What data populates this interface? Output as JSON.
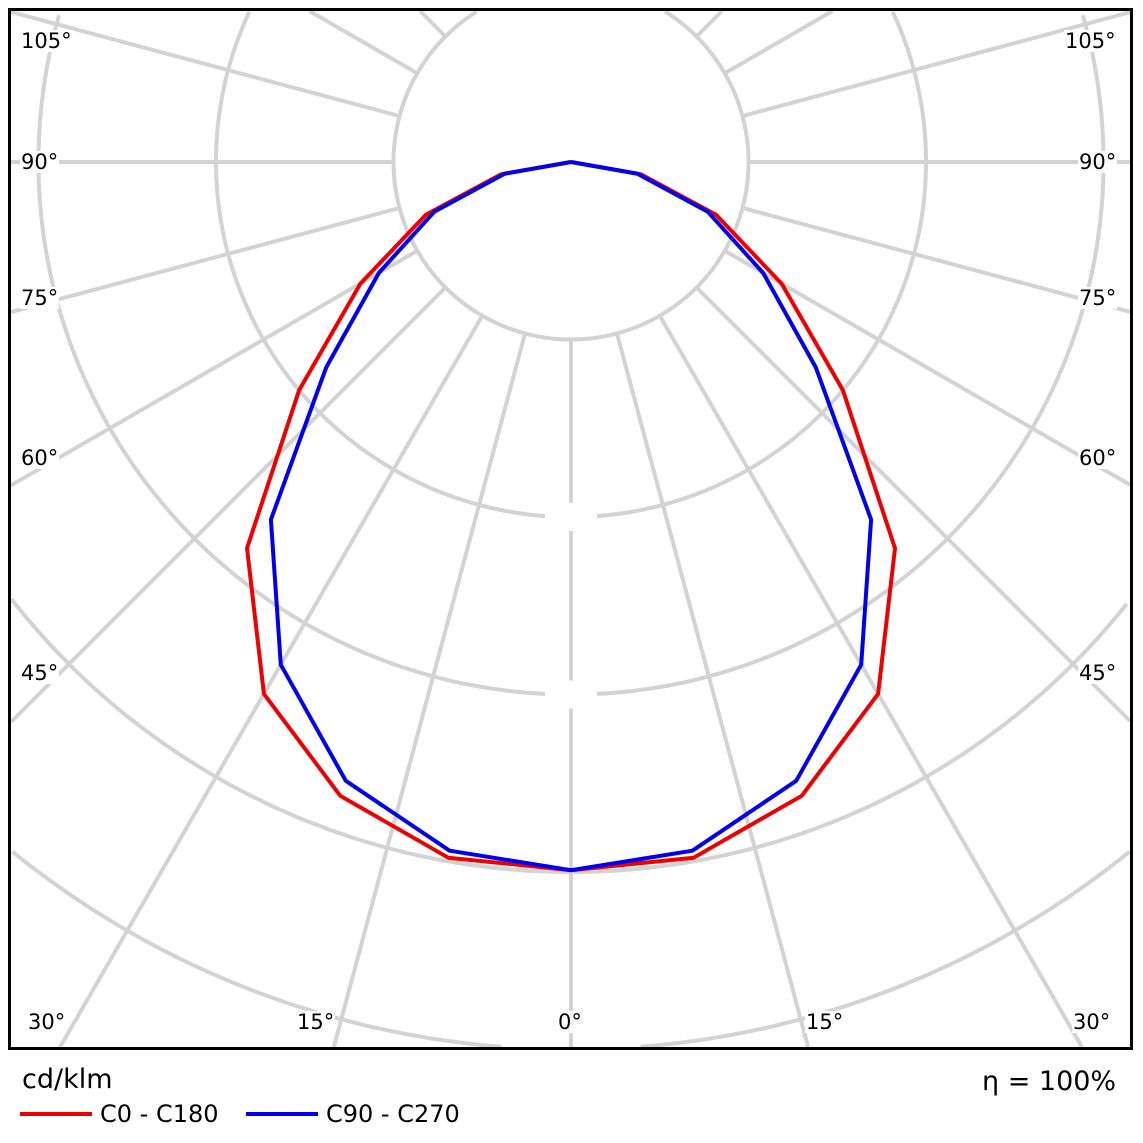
{
  "chart_data": {
    "type": "polar-line",
    "unit_label": "cd/klm",
    "efficiency_label": "η = 100%",
    "angle_labels": {
      "left": [
        "105°",
        "90°",
        "75°",
        "60°",
        "45°"
      ],
      "right": [
        "105°",
        "90°",
        "75°",
        "60°",
        "45°"
      ],
      "bottom": [
        "30°",
        "15°",
        "0°",
        "15°",
        "30°"
      ]
    },
    "grid": true,
    "angle_step_deg": 15,
    "radial_ticks_printed": false,
    "angles_deg": [
      0,
      10,
      20,
      30,
      40,
      50,
      60,
      70,
      80,
      90
    ],
    "series": [
      {
        "name": "C0 - C180",
        "color": "#ee0000",
        "values": [
          3.99,
          3.98,
          3.8,
          3.46,
          2.84,
          2.0,
          1.37,
          0.87,
          0.4,
          0.0
        ]
      },
      {
        "name": "C90 - C270",
        "color": "#0000ee",
        "values": [
          3.99,
          3.94,
          3.71,
          3.27,
          2.63,
          1.8,
          1.25,
          0.82,
          0.38,
          0.0
        ]
      }
    ],
    "legend_position": "bottom-left"
  }
}
